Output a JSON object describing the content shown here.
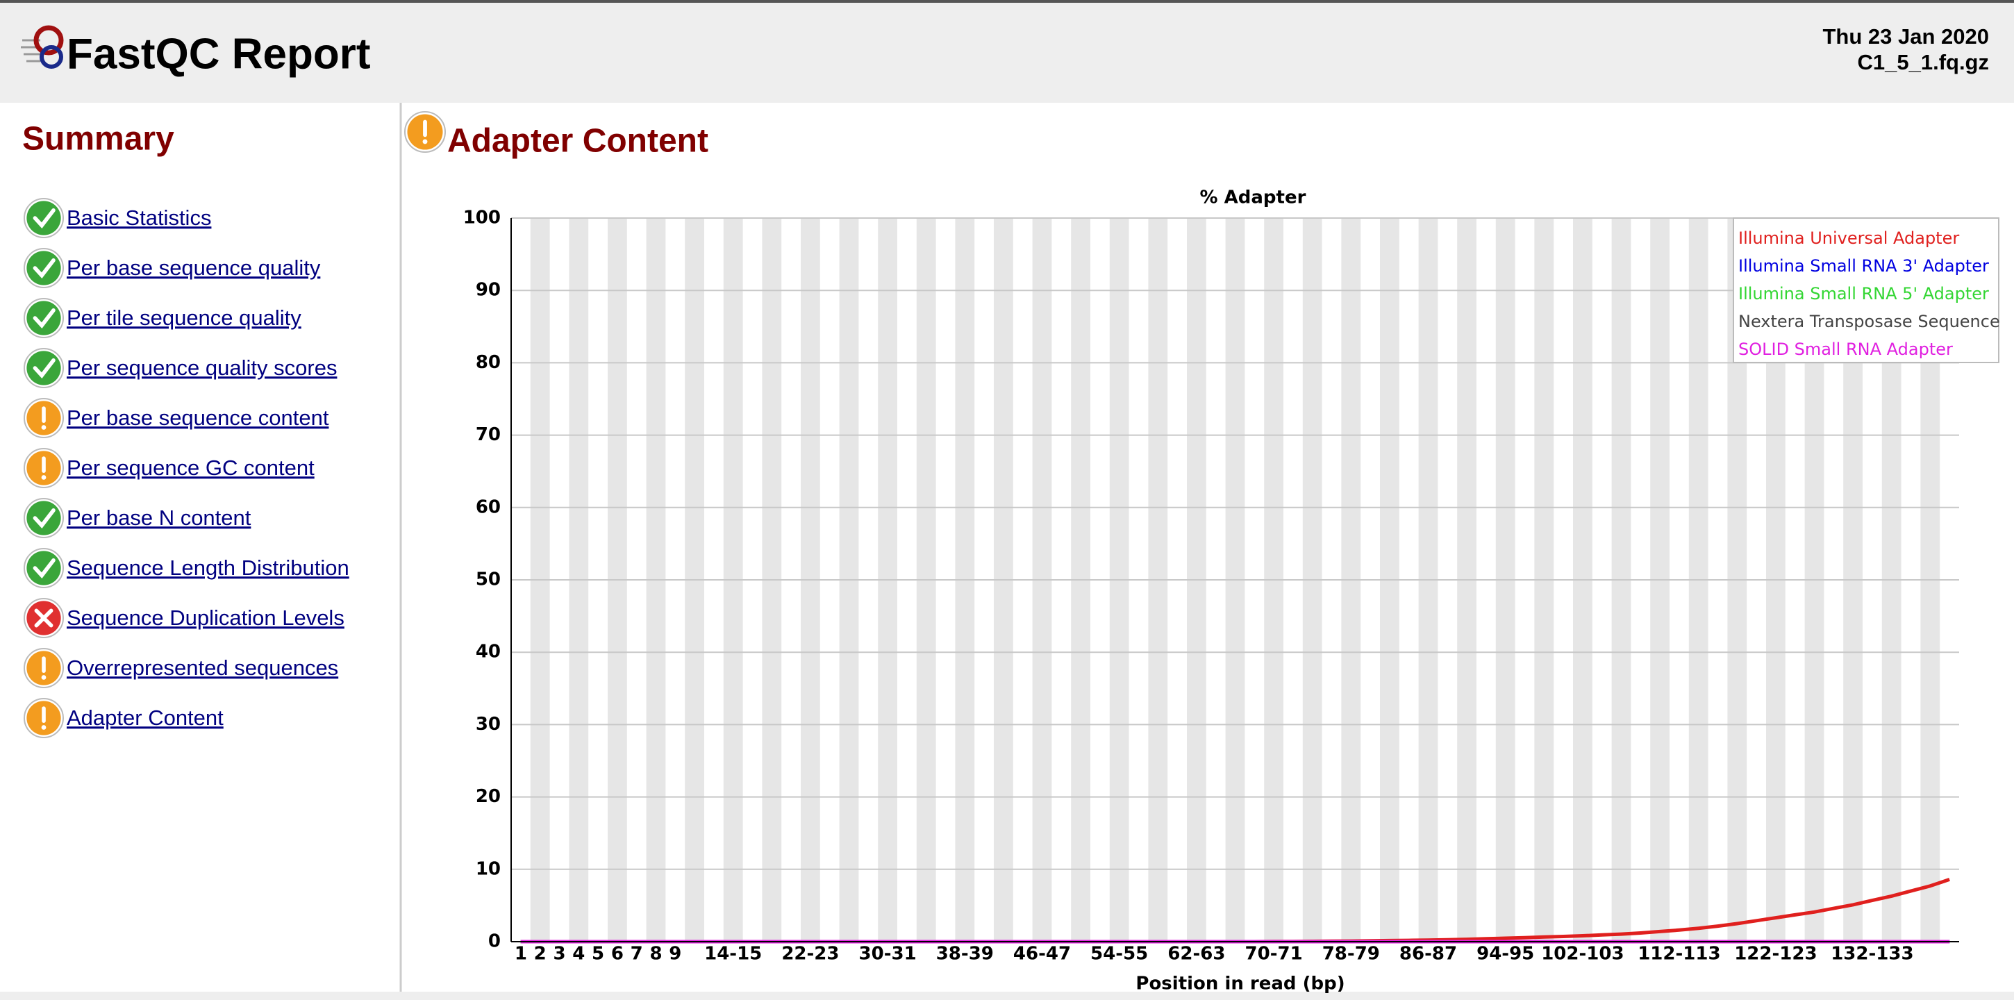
{
  "header": {
    "title": "FastQC Report",
    "date": "Thu 23 Jan 2020",
    "file": "C1_5_1.fq.gz"
  },
  "summary": {
    "title": "Summary",
    "items": [
      {
        "label": "Basic Statistics",
        "status": "pass"
      },
      {
        "label": "Per base sequence quality",
        "status": "pass"
      },
      {
        "label": "Per tile sequence quality",
        "status": "pass"
      },
      {
        "label": "Per sequence quality scores",
        "status": "pass"
      },
      {
        "label": "Per base sequence content",
        "status": "warn"
      },
      {
        "label": "Per sequence GC content",
        "status": "warn"
      },
      {
        "label": "Per base N content",
        "status": "pass"
      },
      {
        "label": "Sequence Length Distribution",
        "status": "pass"
      },
      {
        "label": "Sequence Duplication Levels",
        "status": "fail"
      },
      {
        "label": "Overrepresented sequences",
        "status": "warn"
      },
      {
        "label": "Adapter Content",
        "status": "warn"
      }
    ]
  },
  "section": {
    "title": "Adapter Content",
    "status": "warn"
  },
  "chart_data": {
    "type": "line",
    "title": "% Adapter",
    "x_label": "Position in read (bp)",
    "categories": [
      "1",
      "2",
      "3",
      "4",
      "5",
      "6",
      "7",
      "8",
      "9",
      null,
      null,
      "14-15",
      null,
      null,
      null,
      "22-23",
      null,
      null,
      null,
      "30-31",
      null,
      null,
      null,
      "38-39",
      null,
      null,
      null,
      "46-47",
      null,
      null,
      null,
      "54-55",
      null,
      null,
      null,
      "62-63",
      null,
      null,
      null,
      "70-71",
      null,
      null,
      null,
      "78-79",
      null,
      null,
      null,
      "86-87",
      null,
      null,
      null,
      "94-95",
      null,
      null,
      null,
      "102-103",
      null,
      null,
      null,
      null,
      "112-113",
      null,
      null,
      null,
      null,
      "122-123",
      null,
      null,
      null,
      null,
      "132-133",
      null,
      null,
      null,
      null
    ],
    "series": [
      {
        "name": "Illumina Universal Adapter",
        "color": "#e0201e",
        "values": [
          0,
          0,
          0,
          0,
          0,
          0,
          0,
          0,
          0,
          0,
          0,
          0,
          0,
          0,
          0,
          0,
          0,
          0,
          0,
          0,
          0,
          0,
          0,
          0,
          0,
          0,
          0,
          0,
          0,
          0,
          0,
          0,
          0,
          0,
          0,
          0,
          0,
          0,
          0,
          0.02,
          0.03,
          0.05,
          0.07,
          0.09,
          0.12,
          0.15,
          0.18,
          0.22,
          0.27,
          0.33,
          0.4,
          0.48,
          0.56,
          0.64,
          0.72,
          0.82,
          0.93,
          1.05,
          1.2,
          1.4,
          1.6,
          1.85,
          2.15,
          2.5,
          2.9,
          3.3,
          3.7,
          4.1,
          4.6,
          5.1,
          5.7,
          6.3,
          7.0,
          7.7,
          8.6
        ]
      },
      {
        "name": "Illumina Small RNA 3' Adapter",
        "color": "#0000e0",
        "values": [
          0,
          0,
          0,
          0,
          0,
          0,
          0,
          0,
          0,
          0,
          0,
          0,
          0,
          0,
          0,
          0,
          0,
          0,
          0,
          0,
          0,
          0,
          0,
          0,
          0,
          0,
          0,
          0,
          0,
          0,
          0,
          0,
          0,
          0,
          0,
          0,
          0,
          0,
          0,
          0,
          0,
          0,
          0,
          0,
          0,
          0,
          0,
          0,
          0,
          0,
          0,
          0,
          0,
          0,
          0,
          0,
          0,
          0,
          0,
          0,
          0,
          0,
          0,
          0,
          0,
          0,
          0,
          0,
          0,
          0,
          0,
          0,
          0,
          0,
          0
        ]
      },
      {
        "name": "Illumina Small RNA 5' Adapter",
        "color": "#33d633",
        "values": [
          0,
          0,
          0,
          0,
          0,
          0,
          0,
          0,
          0,
          0,
          0,
          0,
          0,
          0,
          0,
          0,
          0,
          0,
          0,
          0,
          0,
          0,
          0,
          0,
          0,
          0,
          0,
          0,
          0,
          0,
          0,
          0,
          0,
          0,
          0,
          0,
          0,
          0,
          0,
          0,
          0,
          0,
          0,
          0,
          0,
          0,
          0,
          0,
          0,
          0,
          0,
          0,
          0,
          0,
          0,
          0,
          0,
          0,
          0,
          0,
          0,
          0,
          0,
          0,
          0,
          0,
          0,
          0,
          0,
          0,
          0,
          0,
          0,
          0,
          0
        ]
      },
      {
        "name": "Nextera Transposase Sequence",
        "color": "#444444",
        "values": [
          0,
          0,
          0,
          0,
          0,
          0,
          0,
          0,
          0,
          0,
          0,
          0,
          0,
          0,
          0,
          0,
          0,
          0,
          0,
          0,
          0,
          0,
          0,
          0,
          0,
          0,
          0,
          0,
          0,
          0,
          0,
          0,
          0,
          0,
          0,
          0,
          0,
          0,
          0,
          0,
          0,
          0,
          0,
          0,
          0,
          0,
          0,
          0,
          0,
          0,
          0,
          0,
          0,
          0,
          0,
          0,
          0,
          0,
          0,
          0,
          0,
          0,
          0,
          0,
          0,
          0,
          0,
          0,
          0,
          0,
          0,
          0,
          0,
          0,
          0
        ]
      },
      {
        "name": "SOLID Small RNA Adapter",
        "color": "#e020e0",
        "values": [
          0,
          0,
          0,
          0,
          0,
          0,
          0,
          0,
          0,
          0,
          0,
          0,
          0,
          0,
          0,
          0,
          0,
          0,
          0,
          0,
          0,
          0,
          0,
          0,
          0,
          0,
          0,
          0,
          0,
          0,
          0,
          0,
          0,
          0,
          0,
          0,
          0,
          0,
          0,
          0,
          0,
          0,
          0,
          0,
          0,
          0,
          0,
          0,
          0,
          0,
          0,
          0,
          0,
          0,
          0,
          0,
          0,
          0,
          0,
          0,
          0,
          0,
          0,
          0,
          0,
          0,
          0,
          0,
          0,
          0,
          0,
          0,
          0,
          0,
          0
        ]
      }
    ],
    "ylim": [
      0,
      100
    ],
    "yticks": [
      0,
      10,
      20,
      30,
      40,
      50,
      60,
      70,
      80,
      90,
      100
    ],
    "grid": true,
    "legend": "upper-right"
  }
}
